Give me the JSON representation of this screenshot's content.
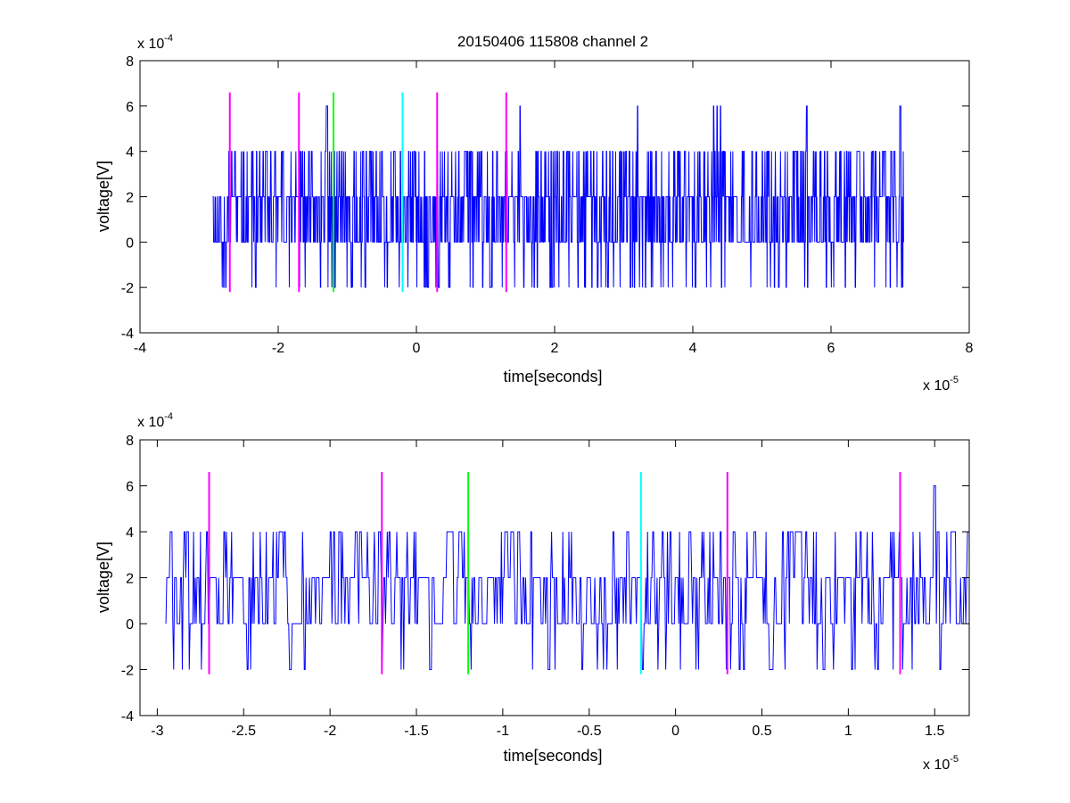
{
  "figure": {
    "title": "20150406 115808 channel 2"
  },
  "chart_data": [
    {
      "type": "line",
      "title": "20150406 115808 channel 2",
      "xlabel": "time[seconds]",
      "ylabel": "voltage[V]",
      "x_scale_note": "x 10",
      "x_scale_exponent": "-5",
      "y_scale_note": "x 10",
      "y_scale_exponent": "-4",
      "xlim": [
        -4,
        8
      ],
      "ylim": [
        -4,
        8
      ],
      "x_ticks": [
        -4,
        -2,
        0,
        2,
        4,
        6,
        8
      ],
      "x_tick_labels": [
        "-4",
        "-2",
        "0",
        "2",
        "4",
        "6",
        "8"
      ],
      "y_ticks": [
        -4,
        -2,
        0,
        2,
        4,
        6,
        8
      ],
      "y_tick_labels": [
        "-4",
        "-2",
        "0",
        "2",
        "4",
        "6",
        "8"
      ],
      "grid": false,
      "series": [
        {
          "color": "#0000ff",
          "x_range": [
            -2.95,
            7.05
          ],
          "samples": 2000,
          "levels": [
            -2,
            0,
            2,
            4,
            6
          ],
          "peak_x": [
            -1.3,
            1.5,
            3.2,
            4.3,
            4.35,
            4.4,
            5.65,
            7.0
          ],
          "seed": 11
        }
      ],
      "markers": [
        {
          "x": -2.7,
          "color": "#ff00ff"
        },
        {
          "x": -1.7,
          "color": "#ff00ff"
        },
        {
          "x": -1.2,
          "color": "#00ff00"
        },
        {
          "x": -0.2,
          "color": "#00ffff"
        },
        {
          "x": 0.3,
          "color": "#ff00ff"
        },
        {
          "x": 1.3,
          "color": "#ff00ff"
        }
      ],
      "marker_ylim": [
        -2.2,
        6.6
      ]
    },
    {
      "type": "line",
      "xlabel": "time[seconds]",
      "ylabel": "voltage[V]",
      "x_scale_note": "x 10",
      "x_scale_exponent": "-5",
      "y_scale_note": "x 10",
      "y_scale_exponent": "-4",
      "xlim": [
        -3.1,
        1.7
      ],
      "ylim": [
        -4,
        8
      ],
      "x_ticks": [
        -3,
        -2.5,
        -2,
        -1.5,
        -1,
        -0.5,
        0,
        0.5,
        1,
        1.5
      ],
      "x_tick_labels": [
        "-3",
        "-2.5",
        "-2",
        "-1.5",
        "-1",
        "-0.5",
        "0",
        "0.5",
        "1",
        "1.5"
      ],
      "y_ticks": [
        -4,
        -2,
        0,
        2,
        4,
        6,
        8
      ],
      "y_tick_labels": [
        "-4",
        "-2",
        "0",
        "2",
        "4",
        "6",
        "8"
      ],
      "grid": false,
      "series": [
        {
          "color": "#0000ff",
          "x_range": [
            -2.95,
            1.7
          ],
          "samples": 930,
          "levels": [
            -2,
            0,
            2,
            4,
            6
          ],
          "peak_x": [
            1.5
          ],
          "seed": 29
        }
      ],
      "markers": [
        {
          "x": -2.7,
          "color": "#ff00ff"
        },
        {
          "x": -1.7,
          "color": "#ff00ff"
        },
        {
          "x": -1.2,
          "color": "#00ff00"
        },
        {
          "x": -0.2,
          "color": "#00ffff"
        },
        {
          "x": 0.3,
          "color": "#ff00ff"
        },
        {
          "x": 1.3,
          "color": "#ff00ff"
        }
      ],
      "marker_ylim": [
        -2.2,
        6.6
      ]
    }
  ]
}
